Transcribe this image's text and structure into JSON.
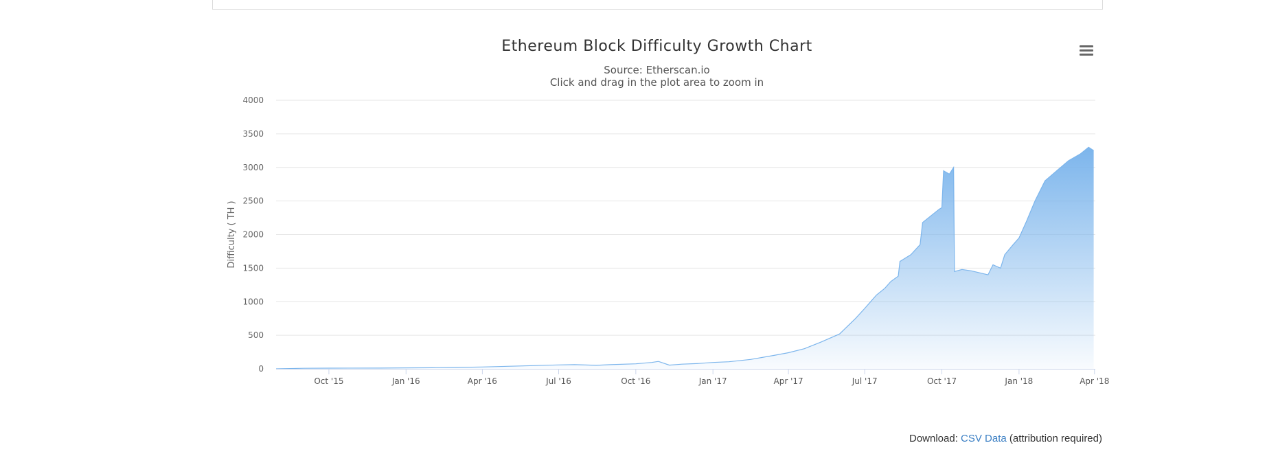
{
  "chart_data": {
    "type": "area",
    "title": "Ethereum Block Difficulty Growth Chart",
    "subtitle_lines": [
      "Source: Etherscan.io",
      "Click and drag in the plot area to zoom in"
    ],
    "ylabel": "Difficulty ( TH )",
    "xlabel": "",
    "ylim": [
      0,
      4000
    ],
    "y_ticks": [
      "0",
      "500",
      "1000",
      "1500",
      "2000",
      "2500",
      "3000",
      "3500",
      "4000"
    ],
    "x_ticks": [
      "Oct '15",
      "Jan '16",
      "Apr '16",
      "Jul '16",
      "Oct '16",
      "Jan '17",
      "Apr '17",
      "Jul '17",
      "Oct '17",
      "Jan '18",
      "Apr '18"
    ],
    "x_tick_dates": [
      "2015-10-01",
      "2016-01-01",
      "2016-04-01",
      "2016-07-01",
      "2016-10-01",
      "2017-01-01",
      "2017-04-01",
      "2017-07-01",
      "2017-10-01",
      "2018-01-01",
      "2018-04-01"
    ],
    "x_range": [
      "2015-07-30",
      "2018-04-02"
    ],
    "grid": true,
    "legend": "none",
    "series": [
      {
        "color": "#7cb5ec",
        "points": [
          [
            "2015-07-30",
            0
          ],
          [
            "2015-09-01",
            8
          ],
          [
            "2015-10-01",
            10
          ],
          [
            "2015-12-01",
            11
          ],
          [
            "2016-01-01",
            14
          ],
          [
            "2016-02-01",
            16
          ],
          [
            "2016-03-01",
            20
          ],
          [
            "2016-04-01",
            28
          ],
          [
            "2016-05-01",
            38
          ],
          [
            "2016-06-01",
            48
          ],
          [
            "2016-07-01",
            58
          ],
          [
            "2016-07-20",
            62
          ],
          [
            "2016-08-15",
            52
          ],
          [
            "2016-09-01",
            62
          ],
          [
            "2016-10-01",
            75
          ],
          [
            "2016-10-20",
            95
          ],
          [
            "2016-10-28",
            110
          ],
          [
            "2016-11-10",
            55
          ],
          [
            "2016-11-25",
            70
          ],
          [
            "2016-12-15",
            80
          ],
          [
            "2017-01-01",
            95
          ],
          [
            "2017-01-20",
            105
          ],
          [
            "2017-02-15",
            140
          ],
          [
            "2017-03-15",
            200
          ],
          [
            "2017-04-01",
            240
          ],
          [
            "2017-04-20",
            300
          ],
          [
            "2017-05-10",
            400
          ],
          [
            "2017-06-01",
            520
          ],
          [
            "2017-06-20",
            750
          ],
          [
            "2017-07-01",
            900
          ],
          [
            "2017-07-15",
            1100
          ],
          [
            "2017-07-25",
            1200
          ],
          [
            "2017-08-01",
            1300
          ],
          [
            "2017-08-10",
            1380
          ],
          [
            "2017-08-12",
            1600
          ],
          [
            "2017-08-25",
            1700
          ],
          [
            "2017-09-05",
            1850
          ],
          [
            "2017-09-08",
            2180
          ],
          [
            "2017-09-20",
            2300
          ],
          [
            "2017-09-28",
            2380
          ],
          [
            "2017-10-01",
            2400
          ],
          [
            "2017-10-03",
            2950
          ],
          [
            "2017-10-10",
            2900
          ],
          [
            "2017-10-15",
            3000
          ],
          [
            "2017-10-16",
            1450
          ],
          [
            "2017-10-25",
            1480
          ],
          [
            "2017-11-05",
            1460
          ],
          [
            "2017-11-15",
            1430
          ],
          [
            "2017-11-25",
            1400
          ],
          [
            "2017-12-01",
            1550
          ],
          [
            "2017-12-10",
            1500
          ],
          [
            "2017-12-15",
            1700
          ],
          [
            "2017-12-25",
            1850
          ],
          [
            "2018-01-01",
            1950
          ],
          [
            "2018-01-10",
            2200
          ],
          [
            "2018-01-20",
            2500
          ],
          [
            "2018-02-01",
            2800
          ],
          [
            "2018-02-15",
            2950
          ],
          [
            "2018-03-01",
            3100
          ],
          [
            "2018-03-15",
            3200
          ],
          [
            "2018-03-25",
            3300
          ],
          [
            "2018-03-31",
            3250
          ]
        ]
      }
    ]
  },
  "download": {
    "prefix": "Download:",
    "link_label": "CSV Data",
    "suffix": "(attribution required)"
  }
}
